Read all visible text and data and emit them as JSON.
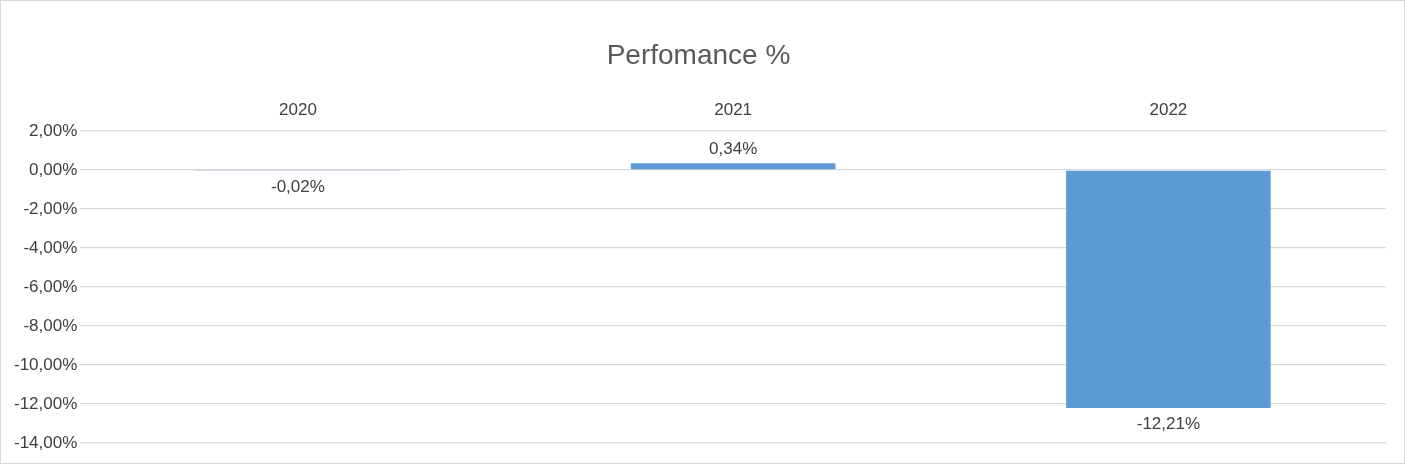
{
  "chart_data": {
    "type": "bar",
    "title": "Perfomance %",
    "categories": [
      "2020",
      "2021",
      "2022"
    ],
    "values": [
      -0.02,
      0.34,
      -12.21
    ],
    "value_labels": [
      "-0,02%",
      "0,34%",
      "-12,21%"
    ],
    "color": "#5b9bd5",
    "ylim": [
      -14,
      2
    ],
    "yticks": [
      {
        "value": 2,
        "label": "2,00%"
      },
      {
        "value": 0,
        "label": "0,00%"
      },
      {
        "value": -2,
        "label": "-2,00%"
      },
      {
        "value": -4,
        "label": "-4,00%"
      },
      {
        "value": -6,
        "label": "-6,00%"
      },
      {
        "value": -8,
        "label": "-8,00%"
      },
      {
        "value": -10,
        "label": "-10,00%"
      },
      {
        "value": -12,
        "label": "-12,00%"
      },
      {
        "value": -14,
        "label": "-14,00%"
      }
    ],
    "grid": "y",
    "legend": false
  }
}
